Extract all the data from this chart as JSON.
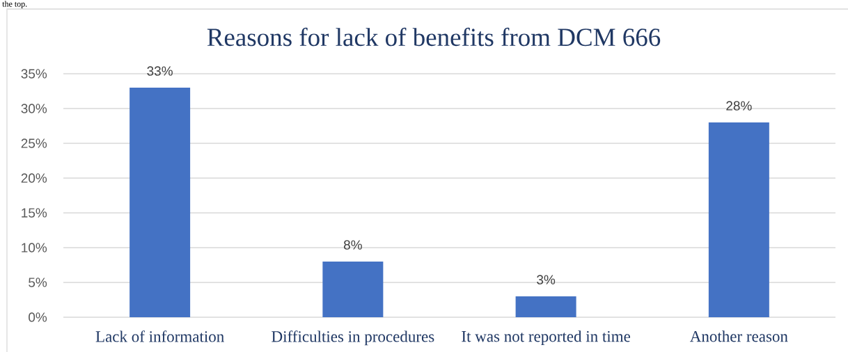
{
  "chart_data": {
    "type": "bar",
    "title": "Reasons for lack of benefits from DCM 666",
    "categories": [
      "Lack of information",
      "Difficulties in procedures",
      "It was not reported in time",
      "Another reason"
    ],
    "values": [
      33,
      8,
      3,
      28
    ],
    "color": "#4472c4",
    "value_labels": [
      "33%",
      "8%",
      "3%",
      "28%"
    ],
    "ylim": [
      0,
      35
    ],
    "yticks": [
      {
        "value": 0,
        "label": "0%"
      },
      {
        "value": 5,
        "label": "5%"
      },
      {
        "value": 10,
        "label": "10%"
      },
      {
        "value": 15,
        "label": "15%"
      },
      {
        "value": 20,
        "label": "20%"
      },
      {
        "value": 25,
        "label": "25%"
      },
      {
        "value": 30,
        "label": "30%"
      },
      {
        "value": 35,
        "label": "35%"
      }
    ],
    "grid": "y",
    "annotations": [
      "the top."
    ]
  }
}
